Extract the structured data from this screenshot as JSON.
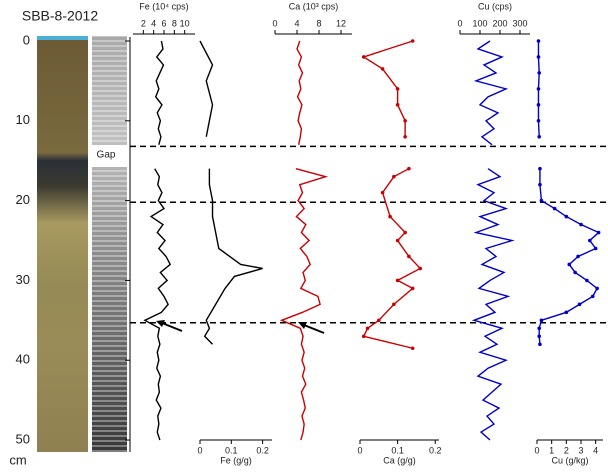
{
  "chart_data": [
    {
      "type": "core",
      "title": "SBB-8-2012",
      "annotation": "Gap",
      "ylabel": "cm",
      "ylim": [
        -0.5,
        51.5
      ],
      "yticks": [
        0,
        10,
        20,
        30,
        40,
        50
      ],
      "hlines": [
        13.2,
        20.2,
        35.3
      ]
    },
    {
      "type": "line",
      "xlabel": "Fe (10⁴ cps)",
      "axis": "top",
      "color": "#000000",
      "markers": false,
      "xlim": [
        0,
        12
      ],
      "xticks": [
        2,
        4,
        6,
        8,
        10
      ],
      "depth": [
        0,
        1,
        2,
        3,
        4,
        5,
        6,
        7,
        8,
        9,
        10,
        11,
        12,
        13,
        null,
        16,
        17,
        18,
        19,
        20,
        21,
        22,
        23,
        24,
        25,
        26,
        27,
        28,
        29,
        30,
        31,
        32,
        33,
        34,
        35,
        36,
        37,
        38,
        39,
        40,
        41,
        42,
        43,
        44,
        45,
        46,
        47,
        48,
        49,
        50
      ],
      "values": [
        5.5,
        5.8,
        4.6,
        5.9,
        5.2,
        4.5,
        5.0,
        4.4,
        5.6,
        4.7,
        5.3,
        4.9,
        5.4,
        5.0,
        null,
        4.2,
        5.1,
        4.8,
        5.6,
        4.9,
        6.0,
        3.5,
        5.8,
        4.7,
        6.2,
        5.0,
        6.4,
        7.2,
        5.3,
        6.6,
        4.9,
        6.0,
        6.8,
        5.5,
        2.3,
        5.1,
        4.8,
        5.2,
        4.7,
        5.0,
        4.6,
        5.3,
        4.9,
        5.1,
        4.5,
        5.4,
        4.8,
        5.0,
        4.7,
        5.2
      ]
    },
    {
      "type": "line",
      "xlabel": "Fe (g/g)",
      "axis": "bottom",
      "color": "#000000",
      "markers": false,
      "xlim": [
        0,
        0.23
      ],
      "xticks": [
        0,
        0.1,
        0.2
      ],
      "depth": [
        0,
        3,
        5,
        8,
        10,
        12,
        null,
        16,
        18,
        20,
        22,
        24,
        26,
        28,
        28.5,
        29.5,
        31,
        33,
        35,
        36,
        37,
        38
      ],
      "values": [
        0.0,
        0.04,
        0.02,
        0.04,
        0.03,
        0.02,
        null,
        0.03,
        0.03,
        0.04,
        0.04,
        0.05,
        0.06,
        0.13,
        0.2,
        0.11,
        0.08,
        0.05,
        0.02,
        0.03,
        0.015,
        0.04
      ]
    },
    {
      "type": "line",
      "xlabel": "Ca (10³ cps)",
      "axis": "top",
      "color": "#cc0000",
      "markers": false,
      "xlim": [
        0,
        14
      ],
      "xticks": [
        0,
        4,
        8,
        12
      ],
      "depth": [
        0,
        1,
        2,
        3,
        4,
        5,
        6,
        7,
        8,
        9,
        10,
        11,
        12,
        13,
        null,
        16,
        17,
        18,
        19,
        20,
        21,
        22,
        23,
        24,
        25,
        26,
        27,
        28,
        29,
        30,
        31,
        32,
        33,
        34,
        35,
        36,
        37,
        38,
        39,
        40,
        41,
        42,
        43,
        44,
        45,
        46,
        47,
        48,
        49,
        50
      ],
      "values": [
        4.5,
        4.0,
        4.8,
        4.3,
        5.0,
        4.4,
        4.7,
        4.1,
        4.9,
        4.5,
        4.2,
        4.8,
        4.6,
        4.3,
        null,
        3.8,
        9.2,
        4.5,
        5.0,
        4.2,
        5.3,
        3.9,
        5.6,
        4.8,
        6.2,
        4.6,
        5.8,
        6.4,
        5.1,
        5.5,
        4.7,
        7.8,
        8.2,
        5.0,
        1.2,
        4.6,
        5.1,
        4.8,
        5.3,
        4.9,
        5.4,
        5.0,
        5.6,
        4.8,
        5.2,
        5.5,
        4.9,
        5.3,
        5.1,
        4.7
      ]
    },
    {
      "type": "line",
      "xlabel": "Ca (g/g)",
      "axis": "bottom",
      "color": "#cc0000",
      "markers": true,
      "xlim": [
        0,
        0.21
      ],
      "xticks": [
        0,
        0.1,
        0.2
      ],
      "depth": [
        0,
        2,
        3.5,
        6,
        8,
        10,
        12,
        null,
        16,
        17,
        19,
        22,
        24,
        25,
        27,
        28.5,
        30,
        31,
        33,
        35,
        36,
        37,
        38.5
      ],
      "values": [
        0.14,
        0.01,
        0.06,
        0.1,
        0.1,
        0.12,
        0.12,
        null,
        0.13,
        0.09,
        0.06,
        0.08,
        0.12,
        0.1,
        0.13,
        0.16,
        0.1,
        0.14,
        0.09,
        0.05,
        0.02,
        0.01,
        0.14
      ]
    },
    {
      "type": "line",
      "xlabel": "Cu (cps)",
      "axis": "top",
      "color": "#0000cc",
      "markers": false,
      "xlim": [
        0,
        350
      ],
      "xticks": [
        0,
        100,
        200,
        300
      ],
      "depth": [
        0,
        1,
        2,
        3,
        4,
        5,
        6,
        7,
        8,
        9,
        10,
        11,
        12,
        13,
        null,
        16,
        17,
        18,
        19,
        20,
        21,
        22,
        23,
        24,
        25,
        26,
        27,
        28,
        29,
        30,
        31,
        32,
        33,
        34,
        35,
        36,
        37,
        38,
        39,
        40,
        41,
        42,
        43,
        44,
        45,
        46,
        47,
        48,
        49,
        50
      ],
      "values": [
        150,
        90,
        210,
        120,
        180,
        80,
        230,
        140,
        100,
        190,
        130,
        170,
        110,
        160,
        null,
        140,
        200,
        90,
        170,
        120,
        230,
        100,
        190,
        80,
        260,
        130,
        180,
        110,
        220,
        150,
        95,
        240,
        130,
        175,
        70,
        210,
        125,
        185,
        100,
        230,
        140,
        90,
        205,
        160,
        115,
        195,
        135,
        170,
        105,
        150
      ]
    },
    {
      "type": "line",
      "xlabel": "Cu (g/kg)",
      "axis": "bottom",
      "color": "#0000cc",
      "markers": true,
      "xlim": [
        0,
        4.5
      ],
      "xticks": [
        0,
        1,
        2,
        3,
        4
      ],
      "depth": [
        0,
        2,
        4,
        6,
        8,
        10,
        12,
        null,
        16,
        18,
        20,
        21,
        22,
        23,
        24,
        25,
        26,
        27,
        28,
        29,
        30,
        31,
        32,
        33,
        34,
        35,
        36,
        37,
        38
      ],
      "values": [
        0.1,
        0.1,
        0.15,
        0.1,
        0.1,
        0.1,
        0.15,
        null,
        0.2,
        0.2,
        0.3,
        1.2,
        2.0,
        3.0,
        4.2,
        3.6,
        4.0,
        2.8,
        2.2,
        2.6,
        3.4,
        4.1,
        3.8,
        2.9,
        2.0,
        0.3,
        0.15,
        0.15,
        0.2
      ]
    }
  ]
}
